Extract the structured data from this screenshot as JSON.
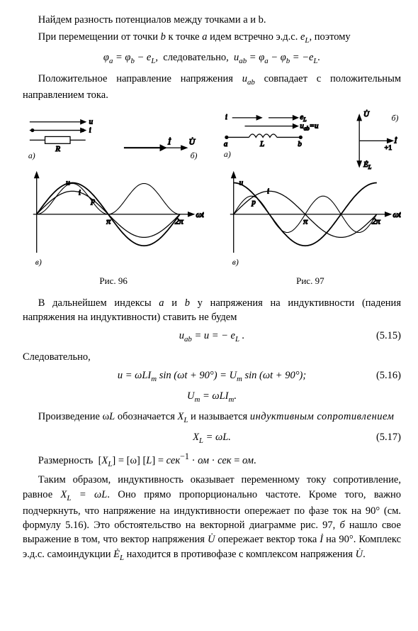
{
  "para1": "Найдем разность потенциалов между точками a и b.",
  "para2_a": "При перемещении от точки ",
  "para2_b": " к точке ",
  "para2_c": " идем встречно э.д.с. ",
  "para2_d": ", поэтому",
  "sym_a": "a",
  "sym_b": "b",
  "sym_eL": "e",
  "sym_L": "L",
  "eq1": "φₐ = φ_b − e_L,  следовательно,  u_{ab} = φₐ − φ_b = −e_L.",
  "para3_a": "Положительное направление напряжения ",
  "para3_b": " совпадает с положительным направлением тока.",
  "sym_uab": "u",
  "sym_ab": "ab",
  "fig96_cap": "Рис. 96",
  "fig97_cap": "Рис. 97",
  "fig96_labels": {
    "u": "u",
    "i": "i",
    "p": "p",
    "pi": "π",
    "twopi": "2π",
    "wt": "ωt",
    "a_lbl": "a)",
    "b_lbl": "б)",
    "v_lbl": "в)",
    "R": "R",
    "I": "İ",
    "U": "U̇"
  },
  "fig97_labels": {
    "u": "u",
    "i": "i",
    "p": "p",
    "pi": "π",
    "twopi": "2π",
    "wt": "ωt",
    "a_lbl": "a)",
    "b_lbl": "б)",
    "v_lbl": "в)",
    "L": "L",
    "a": "a",
    "b": "b",
    "eL": "e_L",
    "uab": "u_{ab}=u",
    "I": "İ",
    "U": "U̇",
    "EL": "Ė_L",
    "plus1": "+1"
  },
  "para4_a": "В дальнейшем индексы ",
  "para4_b": " и ",
  "para4_c": " у напряжения на индуктивности (падения напряжения на индуктивности) ставить не будем",
  "eq515": "u_{ab} = u = − e_L .",
  "eq515_num": "(5.15)",
  "para5": "Следовательно,",
  "eq516": "u = ωLI_m sin (ωt + 90°) = U_m sin (ωt + 90°);",
  "eq516_num": "(5.16)",
  "eq516b": "U_m = ωLI_m.",
  "para6_a": "Произведение ω",
  "para6_b": " обозначается ",
  "para6_c": " и называется ",
  "para6_d": "индуктивным сопротивлением",
  "sym_XL": "X",
  "eq517": "X_L = ωL.",
  "eq517_num": "(5.17)",
  "para7": "Размерность  [X_L] = [ω] [L] = сек⁻¹ · ом · сек = ом.",
  "para8_a": "Таким образом, индуктивность оказывает переменному току сопротивление, равное ",
  "para8_b": ". Оно прямо пропорционально частоте. Кроме того, важно подчеркнуть, что напряжение на индуктивности опережает по фазе ток на 90° (см. формулу 5.16). Это обстоятельство на векторной диаграмме рис. 97, ",
  "para8_c": " нашло свое выражение в том, что вектор напряжения ",
  "para8_d": " опережает вектор тока ",
  "para8_e": " на 90°. Комплекс э.д.с. самоиндукции ",
  "para8_f": " находится в противофазе с комплексом напряжения ",
  "para8_g": ".",
  "sym_XLeq": "X_L = ωL",
  "sym_b_it": "б",
  "sym_Udot": "U̇",
  "sym_Idot": "İ",
  "sym_ELdot": "Ė",
  "colors": {
    "stroke": "#000000",
    "bg": "#ffffff"
  },
  "chart": {
    "type": "waveform-diagrams",
    "x_range": [
      0,
      6.6
    ],
    "y_range": [
      -1.2,
      1.2
    ],
    "pi": 3.1416,
    "twopi": 6.2832,
    "fig96": {
      "curves": [
        {
          "name": "u",
          "phase_deg": 0,
          "amp": 1.0,
          "style": "solid",
          "width": 1.6
        },
        {
          "name": "i",
          "phase_deg": 0,
          "amp": 0.8,
          "style": "solid",
          "width": 1.2
        },
        {
          "name": "p",
          "freq_mult": 2,
          "amp": 0.6,
          "offset": 0.35,
          "style": "solid",
          "width": 1.0
        }
      ]
    },
    "fig97": {
      "curves": [
        {
          "name": "u",
          "phase_deg": 90,
          "amp": 1.0,
          "style": "solid",
          "width": 1.6
        },
        {
          "name": "i",
          "phase_deg": 0,
          "amp": 0.8,
          "style": "solid",
          "width": 1.2
        },
        {
          "name": "p",
          "freq_mult": 2,
          "amp": 0.6,
          "phase_deg": 90,
          "style": "solid",
          "width": 1.0
        }
      ],
      "phasor": {
        "U_angle_deg": 90,
        "I_angle_deg": 0,
        "EL_angle_deg": 270,
        "arrow_len": 30
      }
    }
  }
}
